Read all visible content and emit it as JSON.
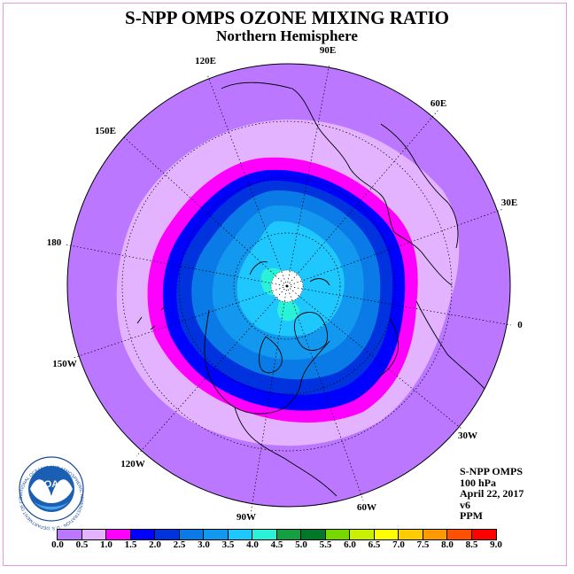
{
  "title": "S-NPP OMPS OZONE MIXING RATIO",
  "subtitle": "Northern Hemisphere",
  "longitude_labels": [
    "90E",
    "60E",
    "30E",
    "0",
    "30W",
    "60W",
    "90W",
    "120W",
    "150W",
    "180",
    "150E",
    "120E"
  ],
  "info": {
    "instrument": "S-NPP OMPS",
    "level": "100 hPa",
    "date": "April 22, 2017",
    "version": "v6",
    "units": "PPM"
  },
  "colorbar": {
    "ticks": [
      "0.0",
      "0.5",
      "1.0",
      "1.5",
      "2.0",
      "2.5",
      "3.0",
      "3.5",
      "4.0",
      "4.5",
      "5.0",
      "5.5",
      "6.0",
      "6.5",
      "7.0",
      "7.5",
      "8.0",
      "8.5",
      "9.0"
    ],
    "colors": [
      "#bb77ff",
      "#e3b3ff",
      "#ff00ff",
      "#0000ff",
      "#0033dd",
      "#0a7ae6",
      "#1398f0",
      "#1ec8ff",
      "#2af2d8",
      "#14a040",
      "#007828",
      "#77d800",
      "#c8f000",
      "#ffff00",
      "#ffcc00",
      "#ff9900",
      "#ff5000",
      "#ff0000",
      "#8b5a3c"
    ]
  },
  "logo": {
    "text": "NOAA",
    "ring_text": "NATIONAL OCEANIC AND ATMOSPHERIC ADMINISTRATION · U.S. DEPARTMENT OF COMMERCE"
  }
}
